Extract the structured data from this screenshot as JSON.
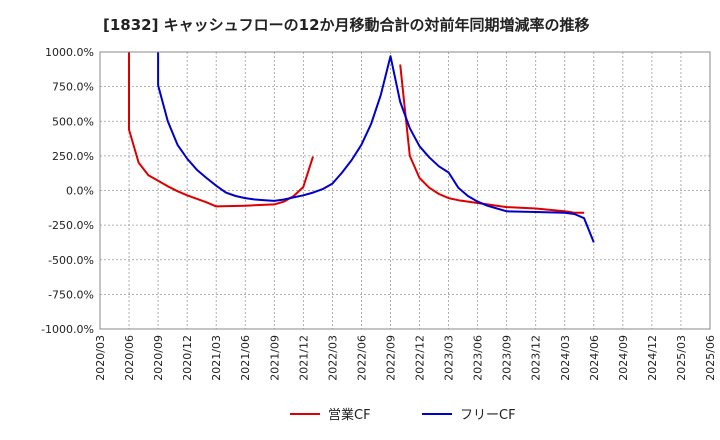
{
  "chart_data": {
    "type": "line",
    "title": "[1832]  キャッシュフローの12か月移動合計の対前年同期増減率の推移",
    "ylim": [
      -1000,
      1000
    ],
    "y_ticks": [
      "1000.0%",
      "750.0%",
      "500.0%",
      "250.0%",
      "0.0%",
      "-250.0%",
      "-500.0%",
      "-750.0%",
      "-1000.0%"
    ],
    "x_ticks": [
      "2020/03",
      "2020/06",
      "2020/09",
      "2020/12",
      "2021/03",
      "2021/06",
      "2021/09",
      "2021/12",
      "2022/03",
      "2022/06",
      "2022/09",
      "2022/12",
      "2023/03",
      "2023/06",
      "2023/09",
      "2023/12",
      "2024/03",
      "2024/06",
      "2024/09",
      "2024/12",
      "2025/03",
      "2025/06"
    ],
    "grid": true,
    "legend_position": "bottom",
    "series": [
      {
        "name": "営業CF",
        "color": "#dd0000",
        "points": [
          [
            "2020/06",
            1000
          ],
          [
            "2020/06",
            440
          ],
          [
            "2020/07",
            200
          ],
          [
            "2020/08",
            110
          ],
          [
            "2020/09",
            70
          ],
          [
            "2020/10",
            30
          ],
          [
            "2020/11",
            -5
          ],
          [
            "2020/12",
            -35
          ],
          [
            "2021/01",
            -60
          ],
          [
            "2021/02",
            -85
          ],
          [
            "2021/03",
            -115
          ],
          [
            "2021/06",
            -110
          ],
          [
            "2021/09",
            -100
          ],
          [
            "2021/10",
            -80
          ],
          [
            "2021/11",
            -40
          ],
          [
            "2021/12",
            25
          ],
          [
            "2022/01",
            245
          ],
          null,
          [
            "2022/10",
            910
          ],
          [
            "2022/11",
            250
          ],
          [
            "2022/12",
            90
          ],
          [
            "2023/01",
            20
          ],
          [
            "2023/02",
            -25
          ],
          [
            "2023/03",
            -55
          ],
          [
            "2023/04",
            -70
          ],
          [
            "2023/05",
            -80
          ],
          [
            "2023/06",
            -90
          ],
          [
            "2023/07",
            -100
          ],
          [
            "2023/08",
            -110
          ],
          [
            "2023/09",
            -120
          ],
          [
            "2023/12",
            -130
          ],
          [
            "2024/03",
            -150
          ],
          [
            "2024/04",
            -160
          ],
          [
            "2024/05",
            -160
          ]
        ]
      },
      {
        "name": "フリーCF",
        "color": "#0000cc",
        "points": [
          [
            "2020/09",
            1000
          ],
          [
            "2020/09",
            760
          ],
          [
            "2020/10",
            500
          ],
          [
            "2020/11",
            330
          ],
          [
            "2020/12",
            230
          ],
          [
            "2021/01",
            150
          ],
          [
            "2021/02",
            90
          ],
          [
            "2021/03",
            35
          ],
          [
            "2021/04",
            -15
          ],
          [
            "2021/05",
            -40
          ],
          [
            "2021/06",
            -55
          ],
          [
            "2021/07",
            -65
          ],
          [
            "2021/08",
            -70
          ],
          [
            "2021/09",
            -75
          ],
          [
            "2021/10",
            -65
          ],
          [
            "2021/11",
            -50
          ],
          [
            "2021/12",
            -35
          ],
          [
            "2022/01",
            -15
          ],
          [
            "2022/02",
            10
          ],
          [
            "2022/03",
            50
          ],
          [
            "2022/04",
            130
          ],
          [
            "2022/05",
            220
          ],
          [
            "2022/06",
            330
          ],
          [
            "2022/07",
            480
          ],
          [
            "2022/08",
            690
          ],
          [
            "2022/09",
            970
          ],
          [
            "2022/10",
            640
          ],
          [
            "2022/11",
            450
          ],
          [
            "2022/12",
            320
          ],
          [
            "2023/01",
            240
          ],
          [
            "2023/02",
            175
          ],
          [
            "2023/03",
            130
          ],
          [
            "2023/04",
            20
          ],
          [
            "2023/05",
            -40
          ],
          [
            "2023/06",
            -80
          ],
          [
            "2023/07",
            -110
          ],
          [
            "2023/08",
            -130
          ],
          [
            "2023/09",
            -150
          ],
          [
            "2023/12",
            -155
          ],
          [
            "2024/03",
            -160
          ],
          [
            "2024/04",
            -170
          ],
          [
            "2024/05",
            -200
          ],
          [
            "2024/06",
            -375
          ]
        ]
      }
    ]
  }
}
